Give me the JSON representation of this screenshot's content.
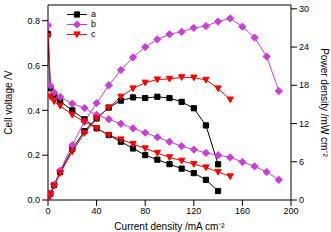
{
  "chart_data": {
    "type": "line",
    "x_label": "Current density /mA cm⁻²",
    "y_label": "Cell voltage /V",
    "y2_label": "Power density /mW cm⁻²",
    "xlim": [
      0,
      200
    ],
    "xticks": [
      0,
      40,
      80,
      120,
      160,
      200
    ],
    "ylim": [
      0,
      0.87
    ],
    "yticks": [
      {
        "value": 0,
        "label": "0.0"
      },
      0.2,
      0.4,
      0.6,
      0.8
    ],
    "y2lim": [
      0,
      30.6
    ],
    "y2ticks": [
      0,
      6,
      12,
      18,
      24,
      30
    ],
    "legend": "upper left",
    "series": [
      {
        "name": "a",
        "color": "#000000",
        "marker": "square",
        "x": [
          0,
          2,
          5,
          10,
          20,
          30,
          40,
          50,
          60,
          70,
          80,
          90,
          100,
          110,
          120,
          130,
          140
        ],
        "values": [
          0.74,
          0.5,
          0.47,
          0.44,
          0.4,
          0.36,
          0.32,
          0.29,
          0.26,
          0.23,
          0.2,
          0.18,
          0.16,
          0.14,
          0.12,
          0.09,
          0.04
        ],
        "power": [
          0,
          1.0,
          2.35,
          4.4,
          8.0,
          10.8,
          12.8,
          14.5,
          15.6,
          16.1,
          16.0,
          16.2,
          16.0,
          15.4,
          14.4,
          11.7,
          5.6
        ]
      },
      {
        "name": "b",
        "color": "#c83ed6",
        "marker": "diamond",
        "x": [
          0,
          2,
          5,
          10,
          20,
          30,
          40,
          50,
          60,
          70,
          80,
          90,
          100,
          110,
          120,
          130,
          140,
          150,
          160,
          170,
          180,
          190
        ],
        "values": [
          0.78,
          0.51,
          0.48,
          0.46,
          0.43,
          0.41,
          0.38,
          0.36,
          0.34,
          0.32,
          0.3,
          0.28,
          0.26,
          0.24,
          0.225,
          0.21,
          0.2,
          0.19,
          0.17,
          0.15,
          0.125,
          0.09
        ],
        "power": [
          0,
          1.02,
          2.4,
          4.6,
          8.6,
          12.3,
          15.2,
          18.0,
          20.4,
          22.4,
          24.0,
          25.2,
          26.0,
          26.4,
          27.0,
          27.3,
          28.0,
          28.5,
          27.2,
          25.5,
          22.5,
          17.1
        ]
      },
      {
        "name": "c",
        "color": "#ff0000",
        "marker": "triangle_down",
        "x": [
          0,
          2,
          5,
          10,
          20,
          30,
          40,
          50,
          60,
          70,
          80,
          90,
          100,
          110,
          120,
          130,
          140,
          150
        ],
        "values": [
          0.73,
          0.46,
          0.44,
          0.42,
          0.38,
          0.35,
          0.32,
          0.29,
          0.27,
          0.25,
          0.23,
          0.21,
          0.19,
          0.175,
          0.16,
          0.145,
          0.125,
          0.105
        ],
        "power": [
          0,
          0.92,
          2.2,
          4.2,
          7.6,
          10.5,
          12.8,
          14.5,
          16.2,
          17.5,
          18.4,
          18.9,
          19.0,
          19.25,
          19.2,
          18.85,
          17.5,
          15.75
        ]
      }
    ]
  }
}
